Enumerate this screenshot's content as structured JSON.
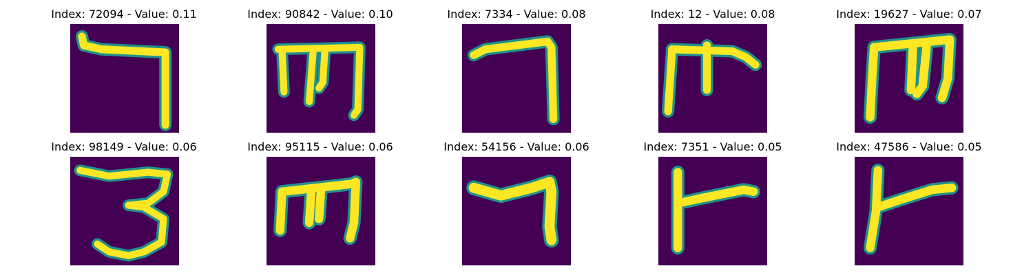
{
  "colors": {
    "background": "#440154",
    "ink_mid": "#21918c",
    "ink_high": "#fde725"
  },
  "panels": [
    {
      "title": "Index: 72094 - Value: 0.11",
      "glyph": "seven-thick-hook"
    },
    {
      "title": "Index: 90842 - Value: 0.10",
      "glyph": "m-like"
    },
    {
      "title": "Index: 7334 - Value: 0.08",
      "glyph": "seven"
    },
    {
      "title": "Index: 12 - Value: 0.08",
      "glyph": "rho-like"
    },
    {
      "title": "Index: 19627 - Value: 0.07",
      "glyph": "m-like-wide"
    },
    {
      "title": "Index: 98149 - Value: 0.06",
      "glyph": "three"
    },
    {
      "title": "Index: 95115 - Value: 0.06",
      "glyph": "m-like"
    },
    {
      "title": "Index: 54156 - Value: 0.06",
      "glyph": "seven-short"
    },
    {
      "title": "Index: 7351 - Value: 0.05",
      "glyph": "r-like"
    },
    {
      "title": "Index: 47586 - Value: 0.05",
      "glyph": "r-like-slanted"
    }
  ]
}
